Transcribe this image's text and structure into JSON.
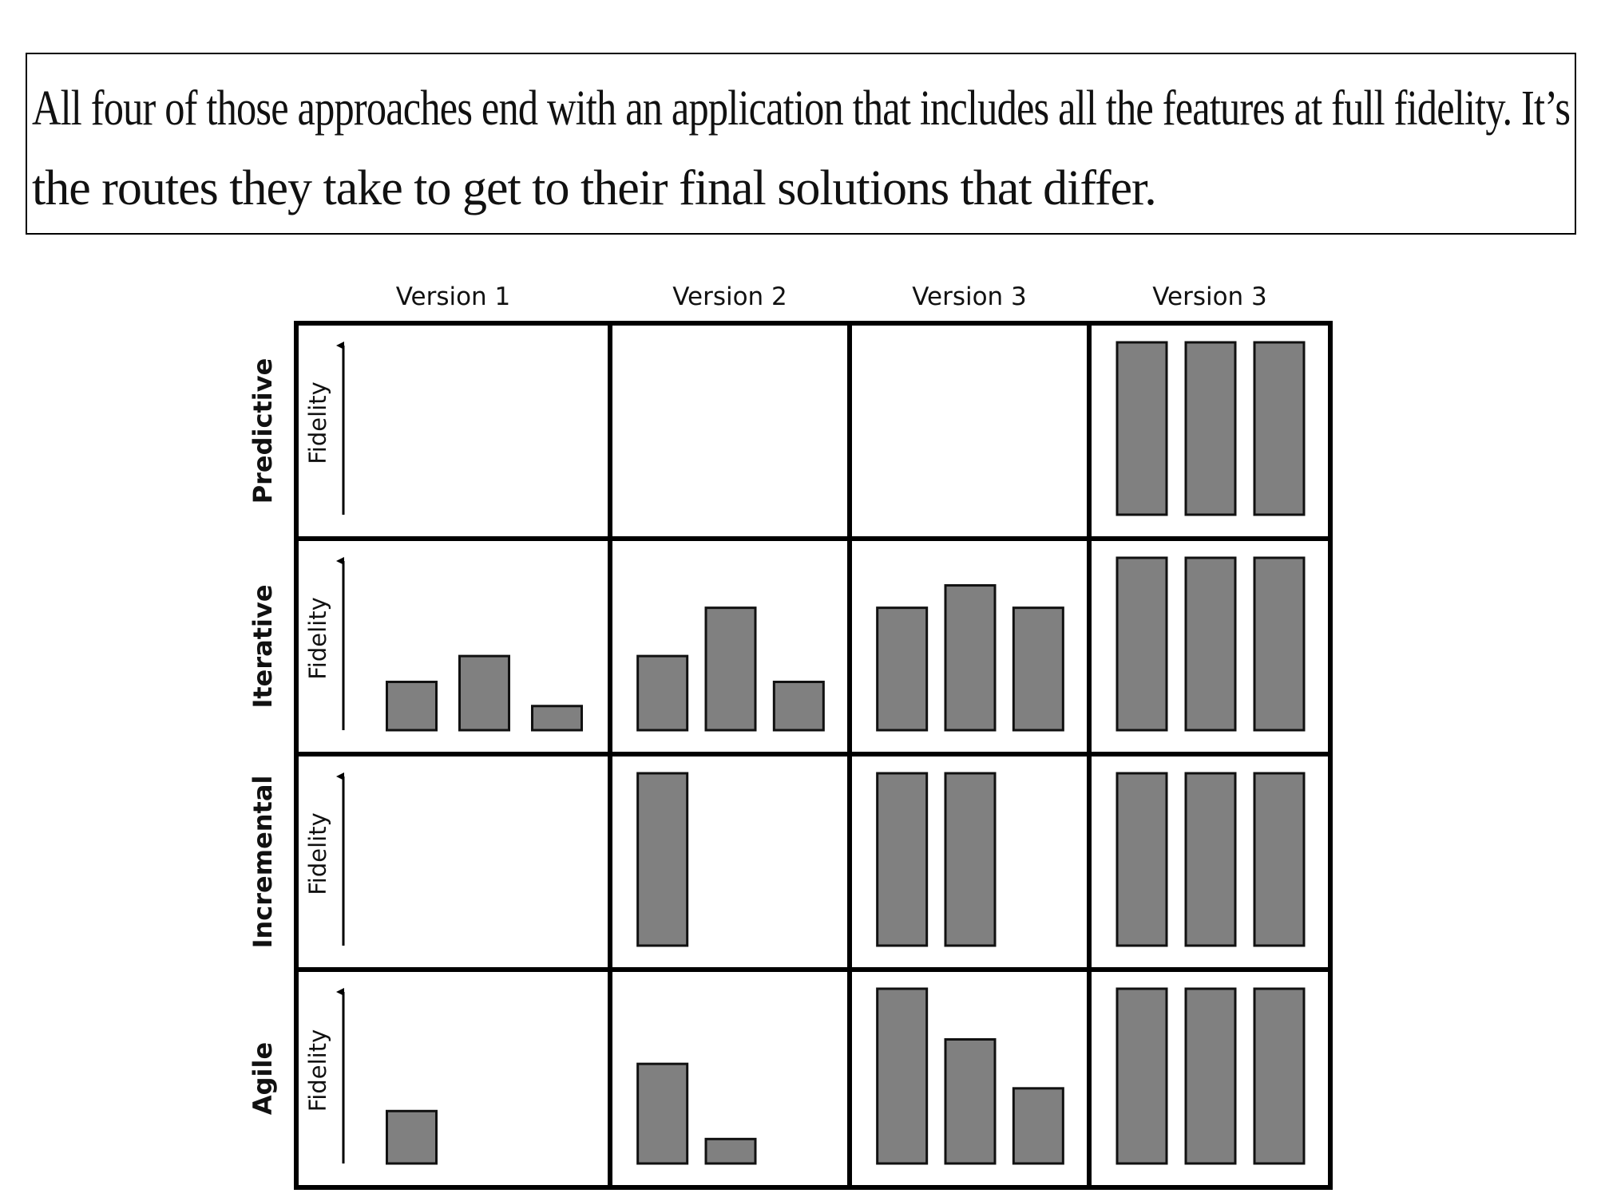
{
  "caption": {
    "line1": "All four of those approaches end with an application that includes all the features at full fidelity. It’s",
    "line2": "the routes they take to get to their final solutions that differ."
  },
  "columns": [
    "Version 1",
    "Version 2",
    "Version 3",
    "Version 3"
  ],
  "axis_label": "Fidelity",
  "colors": {
    "bar_fill": "#808080",
    "bar_stroke": "#111111",
    "grid": "#000000"
  },
  "rows": [
    {
      "label": "Predictive",
      "cells": [
        [],
        [],
        [],
        [
          1.0,
          1.0,
          1.0
        ]
      ]
    },
    {
      "label": "Iterative",
      "cells": [
        [
          0.28,
          0.43,
          0.14
        ],
        [
          0.43,
          0.71,
          0.28
        ],
        [
          0.71,
          0.84,
          0.71
        ],
        [
          1.0,
          1.0,
          1.0
        ]
      ]
    },
    {
      "label": "Incremental",
      "cells": [
        [],
        [
          1.0
        ],
        [
          1.0,
          1.0
        ],
        [
          1.0,
          1.0,
          1.0
        ]
      ]
    },
    {
      "label": "Agile",
      "cells": [
        [
          0.3
        ],
        [
          0.57,
          0.14
        ],
        [
          1.0,
          0.71,
          0.43
        ],
        [
          1.0,
          1.0,
          1.0
        ]
      ]
    }
  ]
}
